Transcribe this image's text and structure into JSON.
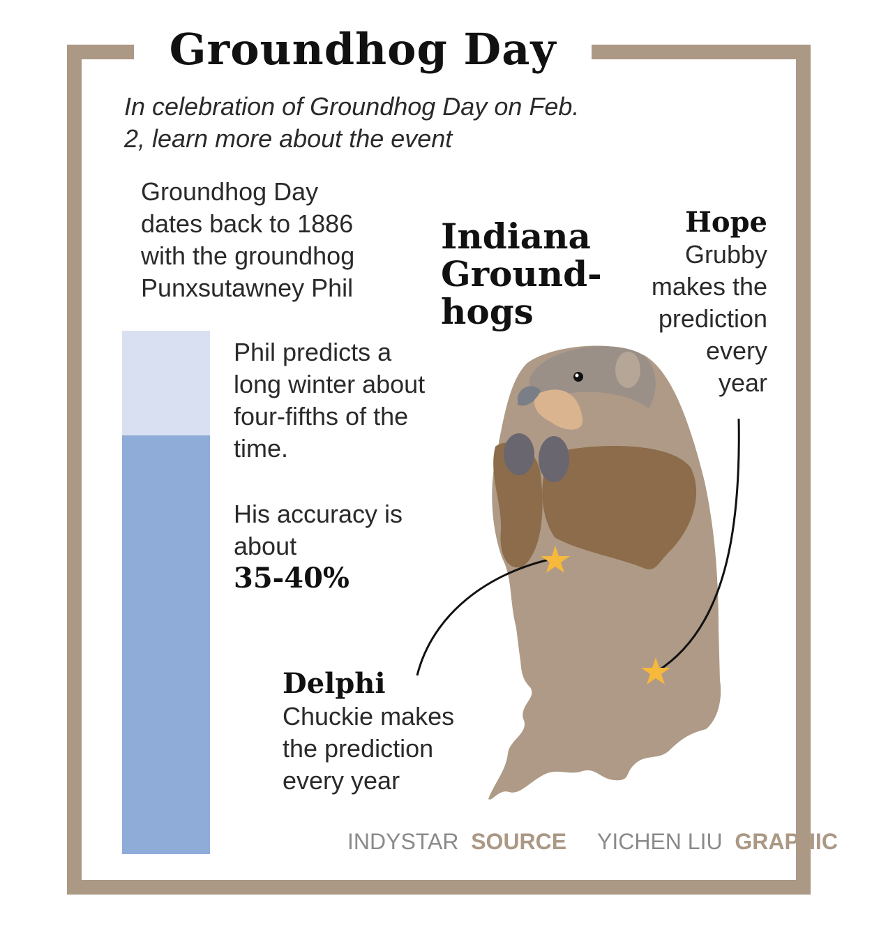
{
  "title": "Groundhog Day",
  "subtitle": [
    "In celebration of Groundhog Day on Feb.",
    "2, learn more about the event"
  ],
  "intro": [
    "Groundhog Day",
    "dates back to 1886",
    "with the groundhog",
    "Punxsutawney Phil"
  ],
  "prediction": [
    "Phil predicts a",
    "long winter about",
    "four-fifths of the",
    "time."
  ],
  "accuracy": {
    "lines": [
      "His accuracy is",
      "about"
    ],
    "value": "35-40%"
  },
  "bar": {
    "fill_fraction": 0.8,
    "fill_color": "#8fabd8",
    "track_color": "#d9e0f1"
  },
  "map_heading": [
    "Indiana",
    "Ground-",
    "hogs"
  ],
  "hope": {
    "name": "Hope",
    "lines": [
      "Grubby",
      "makes the",
      "prediction",
      "every",
      "year"
    ]
  },
  "delphi": {
    "name": "Delphi",
    "lines": [
      "Chuckie makes",
      "the prediction",
      "every year"
    ]
  },
  "credits": {
    "source_org": "INDYSTAR",
    "source_label": "SOURCE",
    "graphic_author": "YICHEN LIU",
    "graphic_label": "GRAPHIC"
  },
  "colors": {
    "frame": "#ab9885",
    "groundhog_body": "#ae9a86",
    "groundhog_belly": "#8c6c4a",
    "star": "#f6b93b"
  }
}
